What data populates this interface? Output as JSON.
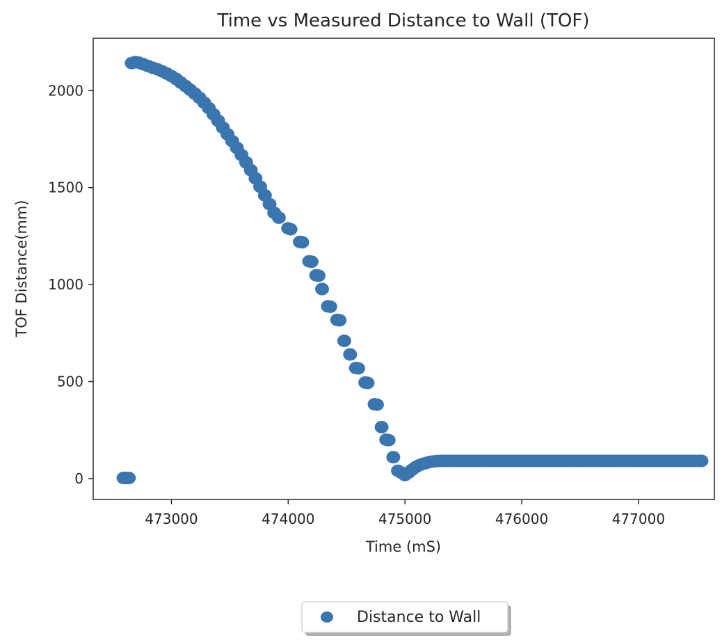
{
  "chart_data": {
    "type": "scatter",
    "title": "Time vs Measured Distance to Wall (TOF)",
    "xlabel": "Time (mS)",
    "ylabel": "TOF Distance(mm)",
    "xlim": [
      472330,
      477650
    ],
    "ylim": [
      -108,
      2270
    ],
    "xticks": [
      473000,
      474000,
      475000,
      476000,
      477000
    ],
    "xtick_labels": [
      "473000",
      "474000",
      "475000",
      "476000",
      "477000"
    ],
    "yticks": [
      0,
      500,
      1000,
      1500,
      2000
    ],
    "ytick_labels": [
      "0",
      "500",
      "1000",
      "1500",
      "2000"
    ],
    "grid": false,
    "legend": {
      "placement": "bottom-center, below plot",
      "entries": [
        "Distance to Wall"
      ]
    },
    "colors": {
      "series": "#3b75af",
      "axes": "#262626"
    },
    "series": [
      {
        "name": "Distance to Wall",
        "points": [
          [
            472590,
            3
          ],
          [
            472605,
            3
          ],
          [
            472620,
            3
          ],
          [
            472635,
            3
          ],
          [
            472660,
            2142
          ],
          [
            472690,
            2147
          ],
          [
            472720,
            2144
          ],
          [
            472760,
            2136
          ],
          [
            472800,
            2127
          ],
          [
            472840,
            2118
          ],
          [
            472880,
            2110
          ],
          [
            472920,
            2100
          ],
          [
            472960,
            2088
          ],
          [
            473000,
            2075
          ],
          [
            473040,
            2060
          ],
          [
            473080,
            2042
          ],
          [
            473120,
            2024
          ],
          [
            473160,
            2005
          ],
          [
            473200,
            1985
          ],
          [
            473240,
            1963
          ],
          [
            473280,
            1938
          ],
          [
            473320,
            1910
          ],
          [
            473360,
            1878
          ],
          [
            473400,
            1845
          ],
          [
            473440,
            1810
          ],
          [
            473480,
            1775
          ],
          [
            473520,
            1740
          ],
          [
            473560,
            1705
          ],
          [
            473600,
            1668
          ],
          [
            473640,
            1630
          ],
          [
            473680,
            1590
          ],
          [
            473720,
            1548
          ],
          [
            473760,
            1505
          ],
          [
            473800,
            1460
          ],
          [
            473840,
            1415
          ],
          [
            473880,
            1370
          ],
          [
            473920,
            1345
          ],
          [
            474000,
            1290
          ],
          [
            474020,
            1285
          ],
          [
            474100,
            1220
          ],
          [
            474120,
            1218
          ],
          [
            474180,
            1120
          ],
          [
            474200,
            1118
          ],
          [
            474240,
            1048
          ],
          [
            474260,
            1046
          ],
          [
            474290,
            977
          ],
          [
            474340,
            888
          ],
          [
            474360,
            886
          ],
          [
            474420,
            818
          ],
          [
            474440,
            816
          ],
          [
            474480,
            710
          ],
          [
            474530,
            640
          ],
          [
            474580,
            570
          ],
          [
            474600,
            568
          ],
          [
            474660,
            495
          ],
          [
            474680,
            493
          ],
          [
            474740,
            383
          ],
          [
            474760,
            381
          ],
          [
            474800,
            265
          ],
          [
            474840,
            200
          ],
          [
            474860,
            198
          ],
          [
            474900,
            110
          ],
          [
            474940,
            40
          ],
          [
            474970,
            30
          ],
          [
            475000,
            18
          ],
          [
            475030,
            30
          ],
          [
            475060,
            45
          ],
          [
            475090,
            58
          ],
          [
            475120,
            68
          ],
          [
            475150,
            75
          ],
          [
            475180,
            80
          ],
          [
            475210,
            85
          ],
          [
            475240,
            88
          ],
          [
            475270,
            90
          ],
          [
            475300,
            91
          ],
          [
            475330,
            91
          ],
          [
            475360,
            91
          ],
          [
            475390,
            91
          ],
          [
            475420,
            91
          ],
          [
            475450,
            91
          ],
          [
            475480,
            91
          ],
          [
            475510,
            91
          ],
          [
            475540,
            91
          ],
          [
            475570,
            91
          ],
          [
            475600,
            91
          ],
          [
            475630,
            91
          ],
          [
            475660,
            91
          ],
          [
            475690,
            91
          ],
          [
            475720,
            91
          ],
          [
            475750,
            91
          ],
          [
            475780,
            91
          ],
          [
            475810,
            91
          ],
          [
            475840,
            91
          ],
          [
            475870,
            91
          ],
          [
            475900,
            91
          ],
          [
            475930,
            91
          ],
          [
            475960,
            91
          ],
          [
            475990,
            91
          ],
          [
            476020,
            91
          ],
          [
            476050,
            91
          ],
          [
            476080,
            91
          ],
          [
            476110,
            91
          ],
          [
            476140,
            91
          ],
          [
            476170,
            91
          ],
          [
            476200,
            91
          ],
          [
            476230,
            91
          ],
          [
            476260,
            91
          ],
          [
            476290,
            91
          ],
          [
            476320,
            91
          ],
          [
            476350,
            91
          ],
          [
            476380,
            91
          ],
          [
            476410,
            91
          ],
          [
            476440,
            91
          ],
          [
            476470,
            91
          ],
          [
            476500,
            91
          ],
          [
            476530,
            91
          ],
          [
            476560,
            91
          ],
          [
            476590,
            91
          ],
          [
            476620,
            91
          ],
          [
            476650,
            91
          ],
          [
            476680,
            91
          ],
          [
            476710,
            91
          ],
          [
            476740,
            91
          ],
          [
            476770,
            91
          ],
          [
            476800,
            91
          ],
          [
            476830,
            91
          ],
          [
            476860,
            91
          ],
          [
            476890,
            91
          ],
          [
            476920,
            91
          ],
          [
            476950,
            91
          ],
          [
            476980,
            91
          ],
          [
            477010,
            91
          ],
          [
            477040,
            91
          ],
          [
            477070,
            91
          ],
          [
            477100,
            91
          ],
          [
            477130,
            91
          ],
          [
            477160,
            91
          ],
          [
            477190,
            91
          ],
          [
            477220,
            91
          ],
          [
            477250,
            91
          ],
          [
            477280,
            91
          ],
          [
            477310,
            91
          ],
          [
            477340,
            91
          ],
          [
            477370,
            91
          ],
          [
            477400,
            91
          ],
          [
            477430,
            91
          ],
          [
            477460,
            91
          ],
          [
            477490,
            91
          ],
          [
            477520,
            91
          ],
          [
            477540,
            91
          ]
        ]
      }
    ]
  }
}
